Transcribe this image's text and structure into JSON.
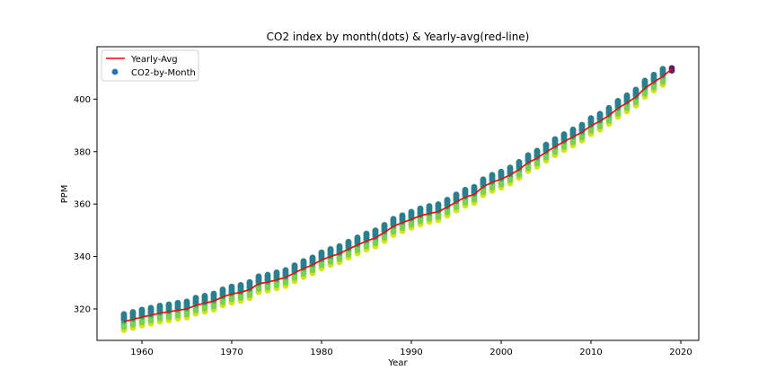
{
  "chart_data": {
    "type": "scatter",
    "title": "CO2 index by month(dots) & Yearly-avg(red-line)",
    "xlabel": "Year",
    "ylabel": "PPM",
    "xlim": [
      1955,
      2022
    ],
    "ylim": [
      308,
      420
    ],
    "xticks": [
      1960,
      1970,
      1980,
      1990,
      2000,
      2010,
      2020
    ],
    "yticks": [
      320,
      340,
      360,
      380,
      400
    ],
    "grid": false,
    "legend_position": "top-left",
    "colors": {
      "yearly_avg": "#ff0000",
      "month_high": "#2a7f8e",
      "month_mid": "#22a884",
      "month_low": "#7ad151",
      "month_lowest": "#d7e219",
      "last_point": "#5a1f63"
    },
    "series": [
      {
        "name": "Yearly-Avg",
        "kind": "line",
        "x": [
          1958,
          1959,
          1960,
          1961,
          1962,
          1963,
          1964,
          1965,
          1966,
          1967,
          1968,
          1969,
          1970,
          1971,
          1972,
          1973,
          1974,
          1975,
          1976,
          1977,
          1978,
          1979,
          1980,
          1981,
          1982,
          1983,
          1984,
          1985,
          1986,
          1987,
          1988,
          1989,
          1990,
          1991,
          1992,
          1993,
          1994,
          1995,
          1996,
          1997,
          1998,
          1999,
          2000,
          2001,
          2002,
          2003,
          2004,
          2005,
          2006,
          2007,
          2008,
          2009,
          2010,
          2011,
          2012,
          2013,
          2014,
          2015,
          2016,
          2017,
          2018,
          2019
        ],
        "values": [
          315.2,
          316.0,
          316.9,
          317.6,
          318.4,
          318.9,
          319.5,
          320.0,
          321.4,
          322.2,
          323.0,
          324.6,
          325.7,
          326.3,
          327.4,
          329.6,
          330.2,
          331.1,
          332.0,
          333.8,
          335.4,
          336.8,
          338.7,
          340.0,
          341.1,
          342.8,
          344.4,
          345.9,
          347.1,
          349.2,
          351.5,
          352.9,
          354.2,
          355.5,
          356.4,
          357.1,
          358.8,
          360.8,
          362.6,
          363.7,
          366.6,
          368.3,
          369.5,
          371.1,
          373.2,
          375.8,
          377.5,
          379.8,
          381.9,
          383.8,
          385.6,
          387.4,
          389.9,
          391.6,
          393.8,
          396.5,
          398.6,
          400.8,
          404.2,
          406.5,
          408.7,
          411.5
        ]
      },
      {
        "name": "CO2-by-Month",
        "kind": "scatter",
        "years": [
          1958,
          1959,
          1960,
          1961,
          1962,
          1963,
          1964,
          1965,
          1966,
          1967,
          1968,
          1969,
          1970,
          1971,
          1972,
          1973,
          1974,
          1975,
          1976,
          1977,
          1978,
          1979,
          1980,
          1981,
          1982,
          1983,
          1984,
          1985,
          1986,
          1987,
          1988,
          1989,
          1990,
          1991,
          1992,
          1993,
          1994,
          1995,
          1996,
          1997,
          1998,
          1999,
          2000,
          2001,
          2002,
          2003,
          2004,
          2005,
          2006,
          2007,
          2008,
          2009,
          2010,
          2011,
          2012,
          2013,
          2014,
          2015,
          2016,
          2017,
          2018
        ],
        "monthly_offsets": [
          0.6,
          1.3,
          2.0,
          2.8,
          2.4,
          0.9,
          -1.0,
          -3.0,
          -3.2,
          -2.0,
          -0.8,
          0.3
        ]
      }
    ],
    "last_point": {
      "x": 2019,
      "values": [
        410.9,
        411.8
      ]
    }
  }
}
